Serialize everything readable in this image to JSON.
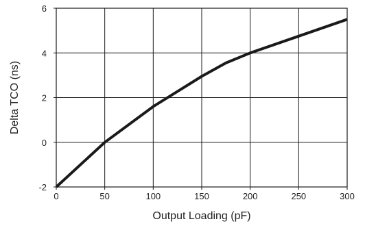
{
  "chart_data": {
    "type": "line",
    "xlabel": "Output Loading (pF)",
    "ylabel": "Delta TCO (ns)",
    "xlim": [
      0,
      300
    ],
    "ylim": [
      -2,
      6
    ],
    "x_ticks": [
      0,
      50,
      100,
      150,
      200,
      250,
      300
    ],
    "y_ticks": [
      -2,
      0,
      2,
      4,
      6
    ],
    "grid": true,
    "series": [
      {
        "x": [
          0,
          50,
          100,
          150,
          175,
          200,
          250,
          300
        ],
        "y": [
          -2.0,
          0.0,
          1.6,
          2.95,
          3.55,
          4.0,
          4.75,
          5.5
        ],
        "color": "#1a1a1a"
      }
    ]
  }
}
